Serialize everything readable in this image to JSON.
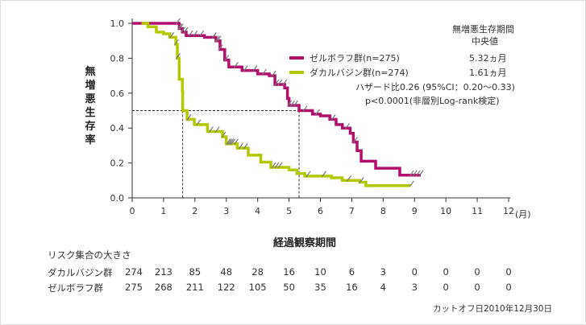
{
  "chart_data": {
    "type": "line",
    "subtype": "kaplan-meier",
    "ylabel": "無増悪生存率",
    "xlabel": "経過観察期間",
    "x_unit": "(月)",
    "xlim": [
      0,
      12
    ],
    "ylim": [
      0,
      1.0
    ],
    "xticks": [
      "0",
      "1",
      "2",
      "3",
      "4",
      "5",
      "6",
      "7",
      "8",
      "9",
      "10",
      "11",
      "12"
    ],
    "yticks": [
      "0.0",
      "0.2",
      "0.4",
      "0.6",
      "0.8",
      "1.0"
    ],
    "series": [
      {
        "name": "ゼルボラフ群(n=275)",
        "color": "#b0106c",
        "steps": [
          [
            0,
            1.0
          ],
          [
            1.39,
            1.0
          ],
          [
            1.5,
            0.97
          ],
          [
            1.6,
            0.95
          ],
          [
            1.72,
            0.93
          ],
          [
            2.3,
            0.92
          ],
          [
            2.67,
            0.9
          ],
          [
            2.8,
            0.85
          ],
          [
            2.95,
            0.79
          ],
          [
            3.08,
            0.75
          ],
          [
            3.5,
            0.73
          ],
          [
            4.0,
            0.71
          ],
          [
            4.37,
            0.7
          ],
          [
            4.55,
            0.65
          ],
          [
            4.86,
            0.63
          ],
          [
            4.95,
            0.57
          ],
          [
            5.0,
            0.53
          ],
          [
            5.32,
            0.5
          ],
          [
            5.75,
            0.48
          ],
          [
            6.0,
            0.47
          ],
          [
            6.3,
            0.45
          ],
          [
            6.5,
            0.42
          ],
          [
            6.7,
            0.4
          ],
          [
            6.95,
            0.37
          ],
          [
            7.05,
            0.32
          ],
          [
            7.17,
            0.27
          ],
          [
            7.3,
            0.21
          ],
          [
            7.76,
            0.17
          ],
          [
            8.53,
            0.13
          ],
          [
            9.2,
            0.13
          ]
        ],
        "censor_x": [
          1.45,
          1.5,
          1.55,
          1.6,
          1.7,
          1.85,
          2.0,
          2.2,
          2.6,
          2.7,
          2.75,
          2.8,
          3.0,
          3.3,
          3.6,
          3.9,
          4.2,
          4.5,
          4.6,
          4.7,
          4.85,
          5.0,
          5.1,
          5.2,
          5.5,
          5.9,
          6.4,
          6.85,
          7.1,
          8.9,
          9.0,
          9.1,
          9.2
        ],
        "median_label": "5.32ヵ月"
      },
      {
        "name": "ダカルバジン群(n=274)",
        "color": "#b4c800",
        "steps": [
          [
            0.3,
            1.0
          ],
          [
            0.5,
            0.98
          ],
          [
            0.77,
            0.95
          ],
          [
            1.0,
            0.94
          ],
          [
            1.2,
            0.92
          ],
          [
            1.39,
            0.88
          ],
          [
            1.44,
            0.8
          ],
          [
            1.5,
            0.68
          ],
          [
            1.6,
            0.61
          ],
          [
            1.61,
            0.5
          ],
          [
            1.75,
            0.45
          ],
          [
            1.98,
            0.42
          ],
          [
            2.4,
            0.38
          ],
          [
            2.88,
            0.35
          ],
          [
            3.0,
            0.31
          ],
          [
            3.35,
            0.285
          ],
          [
            3.7,
            0.245
          ],
          [
            4.1,
            0.205
          ],
          [
            4.42,
            0.175
          ],
          [
            5.0,
            0.16
          ],
          [
            5.25,
            0.14
          ],
          [
            5.5,
            0.125
          ],
          [
            6.35,
            0.115
          ],
          [
            6.7,
            0.1
          ],
          [
            7.25,
            0.09
          ],
          [
            7.45,
            0.07
          ],
          [
            8.87,
            0.07
          ]
        ],
        "censor_x": [
          1.25,
          1.4,
          1.45,
          1.8,
          2.1,
          2.5,
          2.7,
          2.9,
          3.05,
          3.1,
          3.15,
          3.2,
          3.3,
          3.45,
          3.6,
          4.5,
          4.6,
          4.7,
          5.6,
          6.1,
          6.9,
          7.3,
          8.9
        ],
        "median_label": "1.61ヵ月"
      }
    ],
    "median_lines": [
      1.61,
      5.32
    ],
    "median_y": 0.5,
    "legend_placement": "top-right",
    "median_header": [
      "無増悪生存期間",
      "中央値"
    ],
    "annotations": [
      "ハザード比0.26 (95%CI：0.20～0.33)",
      "p<0.0001(非層別Log-rank検定)"
    ],
    "risk_table": {
      "title": "リスク集合の大きさ",
      "rows": [
        {
          "label": "ダカルバジン群",
          "values": [
            "274",
            "213",
            "85",
            "48",
            "28",
            "16",
            "10",
            "6",
            "3",
            "0",
            "0",
            "0",
            "0"
          ]
        },
        {
          "label": "ゼルボラフ群",
          "values": [
            "275",
            "268",
            "211",
            "122",
            "105",
            "50",
            "35",
            "16",
            "4",
            "3",
            "0",
            "0",
            "0"
          ]
        }
      ]
    },
    "footnote": "カットオフ日2010年12月30日"
  }
}
